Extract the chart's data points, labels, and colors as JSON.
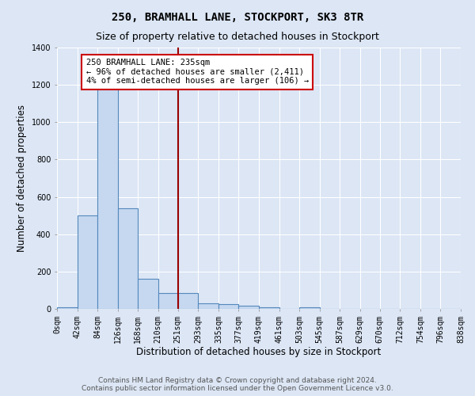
{
  "title": "250, BRAMHALL LANE, STOCKPORT, SK3 8TR",
  "subtitle": "Size of property relative to detached houses in Stockport",
  "xlabel": "Distribution of detached houses by size in Stockport",
  "ylabel": "Number of detached properties",
  "bin_edges": [
    0,
    42,
    84,
    126,
    168,
    210,
    251,
    293,
    335,
    377,
    419,
    461,
    503,
    545,
    587,
    629,
    670,
    712,
    754,
    796,
    838
  ],
  "bar_heights": [
    10,
    500,
    1200,
    540,
    160,
    85,
    85,
    30,
    25,
    15,
    10,
    0,
    10,
    0,
    0,
    0,
    0,
    0,
    0,
    0
  ],
  "bar_color": "#c5d8f0",
  "bar_edge_color": "#5588bb",
  "bg_color": "#dce6f5",
  "grid_color": "#ffffff",
  "vline_x": 251,
  "vline_color": "#990000",
  "annotation_text": "250 BRAMHALL LANE: 235sqm\n← 96% of detached houses are smaller (2,411)\n4% of semi-detached houses are larger (106) →",
  "annotation_box_color": "#ffffff",
  "annotation_box_edge": "#cc0000",
  "ylim": [
    0,
    1400
  ],
  "yticks": [
    0,
    200,
    400,
    600,
    800,
    1000,
    1200,
    1400
  ],
  "xtick_labels": [
    "0sqm",
    "42sqm",
    "84sqm",
    "126sqm",
    "168sqm",
    "210sqm",
    "251sqm",
    "293sqm",
    "335sqm",
    "377sqm",
    "419sqm",
    "461sqm",
    "503sqm",
    "545sqm",
    "587sqm",
    "629sqm",
    "670sqm",
    "712sqm",
    "754sqm",
    "796sqm",
    "838sqm"
  ],
  "footer_text": "Contains HM Land Registry data © Crown copyright and database right 2024.\nContains public sector information licensed under the Open Government Licence v3.0.",
  "title_fontsize": 10,
  "subtitle_fontsize": 9,
  "xlabel_fontsize": 8.5,
  "ylabel_fontsize": 8.5,
  "tick_fontsize": 7,
  "annotation_fontsize": 7.5,
  "footer_fontsize": 6.5
}
